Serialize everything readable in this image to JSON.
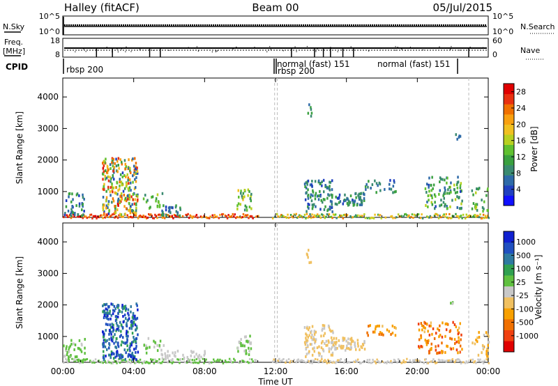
{
  "header": {
    "title_left": "Halley (fitACF)",
    "title_center": "Beam 00",
    "title_right": "05/Jul/2015"
  },
  "noise_panel": {
    "left_label": "N.Sky",
    "right_label": "N.Search",
    "left_ticks": [
      "10^5",
      "10^0"
    ],
    "right_ticks": [
      "10^5",
      "10^0"
    ]
  },
  "freq_panel": {
    "left_label_1": "Freq.",
    "left_label_2": "[MHz]",
    "right_label": "Nave",
    "left_ticks": [
      "18",
      "8"
    ],
    "right_ticks": [
      "60",
      "0"
    ]
  },
  "cpid": {
    "label": "CPID",
    "segments": [
      {
        "start_hour": 0.0,
        "text": "rbsp 200"
      },
      {
        "start_hour": 12.0,
        "text": "normal (fast) 151"
      },
      {
        "start_hour": 12.0,
        "text": "rbsp 200"
      },
      {
        "start_hour": 19.0,
        "text": "normal (fast) 151"
      }
    ]
  },
  "x_axis": {
    "label": "Time UT",
    "ticks": [
      "00:00",
      "04:00",
      "08:00",
      "12:00",
      "16:00",
      "20:00",
      "00:00"
    ]
  },
  "chart_data": [
    {
      "type": "heatmap",
      "name": "power",
      "xlabel": "Time UT",
      "ylabel": "Slant Range [km]",
      "xlim": [
        0,
        24
      ],
      "ylim": [
        180,
        4600
      ],
      "yticks": [
        "1000",
        "2000",
        "3000",
        "4000"
      ],
      "colorbar": {
        "label": "Power [dB]",
        "ticks": [
          "4",
          "8",
          "12",
          "16",
          "20",
          "24",
          "28"
        ],
        "range": [
          0,
          30
        ],
        "colors": [
          "#1010ff",
          "#2040c0",
          "#2e6aa8",
          "#3a8a70",
          "#3aa040",
          "#60c030",
          "#b8d020",
          "#f0c020",
          "#f8a010",
          "#f07000",
          "#e83010",
          "#e00000"
        ]
      },
      "dashed_lines_hours": [
        11.95,
        12.1,
        22.9
      ],
      "scatter_blobs": [
        {
          "t0": 0.0,
          "t1": 1.2,
          "r0": 250,
          "r1": 1000,
          "n": 40,
          "v0": 4,
          "v1": 12
        },
        {
          "t0": 2.2,
          "t1": 4.2,
          "r0": 300,
          "r1": 2100,
          "n": 260,
          "v0": 4,
          "v1": 28
        },
        {
          "t0": 4.5,
          "t1": 5.8,
          "r0": 500,
          "r1": 1000,
          "n": 20,
          "v0": 8,
          "v1": 16
        },
        {
          "t0": 5.5,
          "t1": 6.6,
          "r0": 250,
          "r1": 600,
          "n": 25,
          "v0": 4,
          "v1": 12
        },
        {
          "t0": 9.8,
          "t1": 10.6,
          "r0": 450,
          "r1": 1100,
          "n": 30,
          "v0": 8,
          "v1": 20
        },
        {
          "t0": 13.6,
          "t1": 15.2,
          "r0": 400,
          "r1": 1400,
          "n": 90,
          "v0": 4,
          "v1": 12
        },
        {
          "t0": 13.7,
          "t1": 14.0,
          "r0": 3250,
          "r1": 3800,
          "n": 6,
          "v0": 4,
          "v1": 12
        },
        {
          "t0": 15.2,
          "t1": 17.0,
          "r0": 600,
          "r1": 1000,
          "n": 60,
          "v0": 4,
          "v1": 12
        },
        {
          "t0": 17.0,
          "t1": 18.8,
          "r0": 1000,
          "r1": 1400,
          "n": 25,
          "v0": 4,
          "v1": 12
        },
        {
          "t0": 20.4,
          "t1": 22.5,
          "r0": 500,
          "r1": 1500,
          "n": 90,
          "v0": 4,
          "v1": 16
        },
        {
          "t0": 22.0,
          "t1": 22.4,
          "r0": 2700,
          "r1": 2900,
          "n": 5,
          "v0": 4,
          "v1": 8
        },
        {
          "t0": 23.0,
          "t1": 24.0,
          "r0": 400,
          "r1": 1200,
          "n": 25,
          "v0": 8,
          "v1": 16
        }
      ],
      "ground_band": {
        "r0": 180,
        "r1": 320,
        "segments": [
          [
            0.0,
            11.0,
            20,
            30
          ],
          [
            11.8,
            24.0,
            8,
            24
          ]
        ]
      }
    },
    {
      "type": "heatmap",
      "name": "velocity",
      "xlabel": "Time UT",
      "ylabel": "Slant Range [km]",
      "xlim": [
        0,
        24
      ],
      "ylim": [
        180,
        4600
      ],
      "yticks": [
        "1000",
        "2000",
        "3000",
        "4000"
      ],
      "colorbar": {
        "label": "Velocity [m s⁻¹]",
        "ticks": [
          "1000",
          "500",
          "100",
          "25",
          "-25",
          "-100",
          "-500",
          "-1000"
        ],
        "range": [
          -1200,
          1200
        ],
        "colors": [
          "#e00000",
          "#f04010",
          "#f07000",
          "#f8a000",
          "#f0c060",
          "#c8c8c8",
          "#60c040",
          "#30a050",
          "#2e7aa0",
          "#2050c0",
          "#1020d0"
        ]
      },
      "dashed_lines_hours": [
        11.95,
        12.1,
        22.9
      ],
      "scatter_blobs": [
        {
          "t0": 0.0,
          "t1": 1.2,
          "r0": 250,
          "r1": 1000,
          "n": 40,
          "v0": 50,
          "v1": 300
        },
        {
          "t0": 2.2,
          "t1": 4.2,
          "r0": 300,
          "r1": 2100,
          "n": 260,
          "v0": 400,
          "v1": 1100
        },
        {
          "t0": 4.5,
          "t1": 5.8,
          "r0": 500,
          "r1": 1000,
          "n": 20,
          "v0": 50,
          "v1": 200
        },
        {
          "t0": 5.5,
          "t1": 8.0,
          "r0": 300,
          "r1": 600,
          "n": 35,
          "v0": -40,
          "v1": 100
        },
        {
          "t0": 9.8,
          "t1": 10.6,
          "r0": 450,
          "r1": 1100,
          "n": 30,
          "v0": 50,
          "v1": 200
        },
        {
          "t0": 13.6,
          "t1": 15.2,
          "r0": 400,
          "r1": 1400,
          "n": 90,
          "v0": -200,
          "v1": -60
        },
        {
          "t0": 13.7,
          "t1": 14.0,
          "r0": 3250,
          "r1": 3800,
          "n": 6,
          "v0": -300,
          "v1": -100
        },
        {
          "t0": 15.2,
          "t1": 17.0,
          "r0": 600,
          "r1": 1000,
          "n": 60,
          "v0": -200,
          "v1": -60
        },
        {
          "t0": 17.0,
          "t1": 18.8,
          "r0": 1000,
          "r1": 1400,
          "n": 25,
          "v0": -700,
          "v1": -300
        },
        {
          "t0": 20.0,
          "t1": 22.5,
          "r0": 500,
          "r1": 1500,
          "n": 100,
          "v0": -900,
          "v1": -300
        },
        {
          "t0": 21.8,
          "t1": 22.0,
          "r0": 2050,
          "r1": 2150,
          "n": 3,
          "v0": 100,
          "v1": 300
        },
        {
          "t0": 23.0,
          "t1": 24.0,
          "r0": 400,
          "r1": 1200,
          "n": 25,
          "v0": -400,
          "v1": -80
        }
      ],
      "ground_band": {
        "r0": 180,
        "r1": 320,
        "segments": [
          [
            0.0,
            11.0,
            20,
            300
          ],
          [
            11.8,
            24.0,
            -150,
            -40
          ]
        ]
      }
    }
  ]
}
